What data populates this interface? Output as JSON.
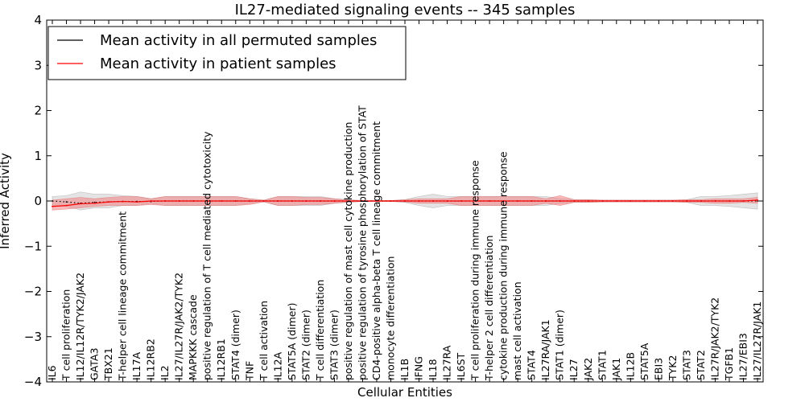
{
  "chart_data": {
    "type": "line",
    "title": "IL27-mediated signaling events -- 345 samples",
    "xlabel": "Cellular Entities",
    "ylabel": "Inferred Activity",
    "ylim": [
      -4,
      4
    ],
    "yticks": [
      "−4",
      "−3",
      "−2",
      "−1",
      "0",
      "1",
      "2",
      "3",
      "4"
    ],
    "legend": {
      "location": "top-left",
      "entries": [
        {
          "label": "Mean activity in all permuted samples",
          "color": "#000000"
        },
        {
          "label": "Mean activity in patient samples",
          "color": "#ff0000"
        }
      ]
    },
    "categories": [
      "IL6",
      "T cell proliferation",
      "IL12/IL12R/TYK2/JAK2",
      "GATA3",
      "TBX21",
      "T-helper cell lineage commitment",
      "IL17A",
      "IL12RB2",
      "IL2",
      "IL27/IL27R/JAK2/TYK2",
      "MAPKKK cascade",
      "positive regulation of T cell mediated cytotoxicity",
      "IL12RB1",
      "STAT4 (dimer)",
      "TNF",
      "T cell activation",
      "IL12A",
      "STAT5A (dimer)",
      "STAT2 (dimer)",
      "T cell differentiation",
      "STAT3 (dimer)",
      "positive regulation of mast cell cytokine production",
      "positive regulation of tyrosine phosphorylation of STAT",
      "CD4-positive alpha-beta T cell lineage commitment",
      "monocyte differentiation",
      "IL1B",
      "IFNG",
      "IL18",
      "IL27RA",
      "IL6ST",
      "T cell proliferation during immune response",
      "T-helper 2 cell differentiation",
      "cytokine production during immune response",
      "mast cell activation",
      "STAT4",
      "IL27RA/JAK1",
      "STAT1 (dimer)",
      "IL27",
      "JAK2",
      "STAT1",
      "JAK1",
      "IL12B",
      "STAT5A",
      "EBI3",
      "TYK2",
      "STAT3",
      "STAT2",
      "IL27R/JAK2/TYK2",
      "TGFB1",
      "IL27/EBI3",
      "IL27/IL27R/JAK1"
    ],
    "series": [
      {
        "name": "Mean activity in all permuted samples",
        "color": "#000000",
        "values": [
          0.0,
          -0.02,
          -0.05,
          -0.03,
          -0.02,
          -0.01,
          -0.01,
          -0.01,
          0.0,
          0.0,
          0.0,
          0.0,
          0.0,
          0.0,
          0.0,
          0.0,
          0.0,
          0.0,
          0.0,
          0.0,
          0.0,
          0.0,
          0.0,
          0.0,
          0.0,
          0.0,
          0.0,
          0.0,
          0.0,
          0.0,
          0.0,
          0.0,
          0.0,
          0.0,
          0.0,
          0.0,
          0.0,
          0.0,
          0.0,
          0.0,
          0.0,
          0.0,
          0.0,
          0.0,
          0.0,
          0.0,
          0.0,
          0.0,
          0.0,
          0.0,
          0.0
        ],
        "band": {
          "lower": [
            -0.1,
            -0.12,
            -0.2,
            -0.15,
            -0.15,
            -0.1,
            -0.1,
            -0.05,
            -0.1,
            -0.1,
            -0.1,
            -0.1,
            -0.1,
            -0.1,
            -0.05,
            -0.02,
            -0.1,
            -0.1,
            -0.1,
            -0.1,
            -0.05,
            -0.03,
            -0.01,
            -0.01,
            -0.01,
            -0.03,
            -0.1,
            -0.15,
            -0.1,
            -0.1,
            -0.1,
            -0.1,
            -0.1,
            -0.1,
            -0.1,
            -0.1,
            -0.05,
            -0.03,
            -0.03,
            -0.02,
            -0.02,
            -0.02,
            -0.02,
            -0.02,
            -0.02,
            -0.03,
            -0.1,
            -0.1,
            -0.12,
            -0.15,
            -0.18
          ],
          "upper": [
            0.1,
            0.12,
            0.2,
            0.15,
            0.15,
            0.12,
            0.1,
            0.05,
            0.1,
            0.1,
            0.1,
            0.1,
            0.1,
            0.1,
            0.05,
            0.02,
            0.1,
            0.1,
            0.1,
            0.1,
            0.05,
            0.03,
            0.01,
            0.01,
            0.01,
            0.03,
            0.1,
            0.15,
            0.1,
            0.1,
            0.1,
            0.1,
            0.1,
            0.1,
            0.1,
            0.1,
            0.05,
            0.03,
            0.03,
            0.02,
            0.02,
            0.02,
            0.02,
            0.02,
            0.02,
            0.03,
            0.1,
            0.1,
            0.12,
            0.15,
            0.18
          ]
        }
      },
      {
        "name": "Mean activity in patient samples",
        "color": "#ff0000",
        "values": [
          -0.12,
          -0.1,
          -0.06,
          -0.05,
          -0.02,
          -0.01,
          -0.02,
          0.0,
          0.0,
          0.0,
          0.0,
          0.0,
          0.0,
          0.0,
          0.0,
          0.0,
          0.0,
          0.0,
          0.0,
          0.0,
          0.0,
          0.0,
          0.0,
          0.0,
          0.0,
          0.0,
          0.0,
          0.0,
          0.0,
          0.0,
          0.0,
          0.0,
          0.0,
          0.0,
          0.0,
          0.0,
          0.0,
          0.0,
          0.0,
          0.0,
          0.0,
          0.0,
          0.0,
          0.0,
          0.0,
          0.0,
          0.0,
          0.0,
          0.0,
          0.0,
          0.02
        ],
        "band": {
          "lower": [
            -0.2,
            -0.18,
            -0.15,
            -0.12,
            -0.1,
            -0.1,
            -0.1,
            -0.08,
            -0.1,
            -0.1,
            -0.1,
            -0.1,
            -0.1,
            -0.1,
            -0.08,
            -0.02,
            -0.1,
            -0.1,
            -0.08,
            -0.08,
            -0.05,
            -0.02,
            -0.01,
            -0.01,
            -0.01,
            -0.02,
            -0.05,
            -0.05,
            -0.05,
            -0.1,
            -0.1,
            -0.1,
            -0.1,
            -0.1,
            -0.1,
            -0.05,
            -0.1,
            -0.03,
            -0.03,
            -0.02,
            -0.02,
            -0.02,
            -0.02,
            -0.02,
            -0.02,
            -0.03,
            -0.03,
            -0.05,
            -0.05,
            -0.03,
            -0.05
          ],
          "upper": [
            0.02,
            0.05,
            0.08,
            0.05,
            0.08,
            0.1,
            0.1,
            0.05,
            0.1,
            0.1,
            0.1,
            0.1,
            0.1,
            0.1,
            0.05,
            0.02,
            0.1,
            0.1,
            0.08,
            0.08,
            0.05,
            0.02,
            0.01,
            0.01,
            0.01,
            0.03,
            0.05,
            0.05,
            0.05,
            0.1,
            0.1,
            0.1,
            0.1,
            0.1,
            0.1,
            0.05,
            0.12,
            0.03,
            0.03,
            0.02,
            0.02,
            0.02,
            0.02,
            0.02,
            0.02,
            0.03,
            0.03,
            0.05,
            0.05,
            0.05,
            0.08
          ]
        }
      }
    ]
  }
}
